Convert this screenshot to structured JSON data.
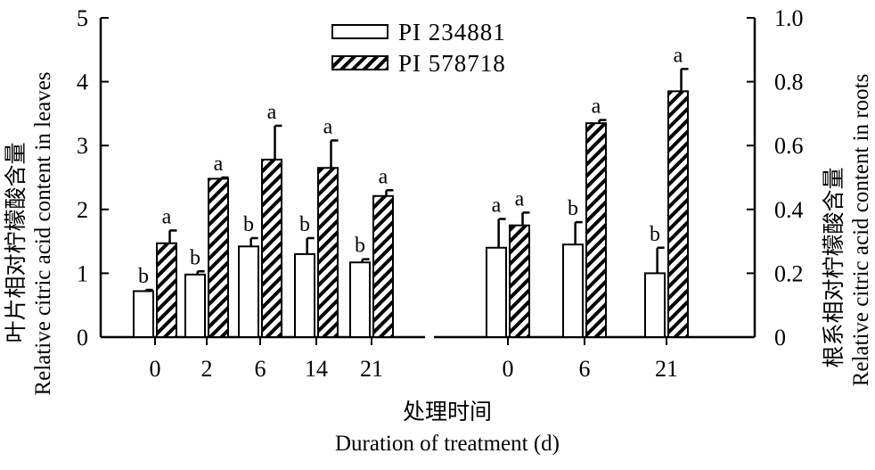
{
  "chart_data": {
    "type": "bar",
    "legend": {
      "placement": "top-center",
      "entries": [
        {
          "name": "PI 234881",
          "pattern": "open"
        },
        {
          "name": "PI 578718",
          "pattern": "hatched"
        }
      ]
    },
    "xlabel_cn": "处理时间",
    "xlabel": "Duration of treatment (d)",
    "panels": [
      {
        "name": "leaves",
        "ylabel_cn": "叶片相对柠檬酸含量",
        "ylabel": "Relative citric acid content in leaves",
        "ylim": [
          0,
          5
        ],
        "yticks": [
          "0",
          "1",
          "2",
          "3",
          "4",
          "5"
        ],
        "categories": [
          "0",
          "2",
          "6",
          "14",
          "21"
        ],
        "series": [
          {
            "name": "PI 234881",
            "values": [
              0.72,
              0.98,
              1.42,
              1.3,
              1.17
            ],
            "errors": [
              0.02,
              0.05,
              0.13,
              0.25,
              0.05
            ],
            "labels": [
              "b",
              "b",
              "b",
              "b",
              "b"
            ]
          },
          {
            "name": "PI 578718",
            "values": [
              1.47,
              2.48,
              2.78,
              2.65,
              2.21
            ],
            "errors": [
              0.2,
              0.02,
              0.53,
              0.43,
              0.09
            ],
            "labels": [
              "a",
              "a",
              "a",
              "a",
              "a"
            ]
          }
        ]
      },
      {
        "name": "roots",
        "ylabel_cn": "根系相对柠檬酸含量",
        "ylabel": "Relative citric acid content in roots",
        "ylim": [
          0,
          1.0
        ],
        "yticks": [
          "0",
          "0.2",
          "0.4",
          "0.6",
          "0.8",
          "1.0"
        ],
        "categories": [
          "0",
          "6",
          "21"
        ],
        "series": [
          {
            "name": "PI 234881",
            "values": [
              0.28,
              0.29,
              0.2
            ],
            "errors": [
              0.09,
              0.07,
              0.08
            ],
            "labels": [
              "a",
              "b",
              "b"
            ]
          },
          {
            "name": "PI 578718",
            "values": [
              0.35,
              0.67,
              0.77
            ],
            "errors": [
              0.04,
              0.01,
              0.07
            ],
            "labels": [
              "a",
              "a",
              "a"
            ]
          }
        ]
      }
    ]
  }
}
